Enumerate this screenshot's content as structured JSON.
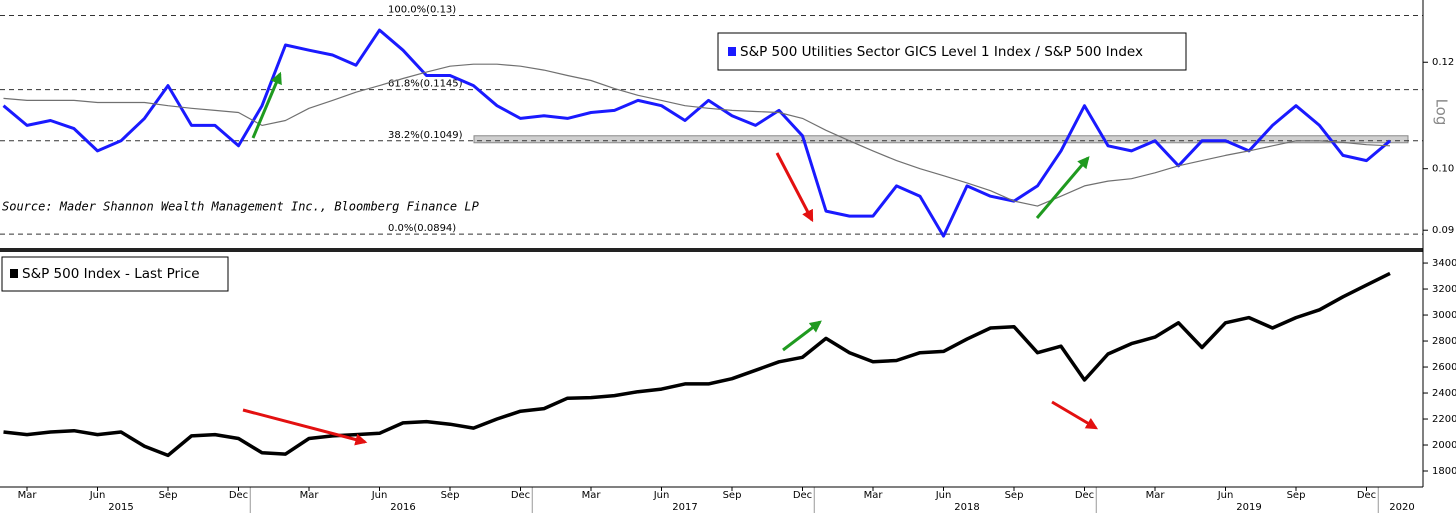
{
  "chart_data": [
    {
      "type": "line",
      "log": true,
      "legend": "S&P 500 Utilities Sector GICS Level 1 Index / S&P 500 Index",
      "source": "Source: Mader Shannon Wealth Management Inc., Bloomberg Finance LP",
      "axis_label": "Log",
      "x": [
        "2015-02",
        "2015-03",
        "2015-04",
        "2015-05",
        "2015-06",
        "2015-07",
        "2015-08",
        "2015-09",
        "2015-10",
        "2015-11",
        "2015-12",
        "2016-01",
        "2016-02",
        "2016-03",
        "2016-04",
        "2016-05",
        "2016-06",
        "2016-07",
        "2016-08",
        "2016-09",
        "2016-10",
        "2016-11",
        "2016-12",
        "2017-01",
        "2017-02",
        "2017-03",
        "2017-04",
        "2017-05",
        "2017-06",
        "2017-07",
        "2017-08",
        "2017-09",
        "2017-10",
        "2017-11",
        "2017-12",
        "2018-01",
        "2018-02",
        "2018-03",
        "2018-04",
        "2018-05",
        "2018-06",
        "2018-07",
        "2018-08",
        "2018-09",
        "2018-10",
        "2018-11",
        "2018-12",
        "2019-01",
        "2019-02",
        "2019-03",
        "2019-04",
        "2019-05",
        "2019-06",
        "2019-07",
        "2019-08",
        "2019-09",
        "2019-10",
        "2019-11",
        "2019-12",
        "2020-01"
      ],
      "series": [
        {
          "name": "S&P 500 Utilities Sector GICS Level 1 Index / S&P 500 Index",
          "color": "#1a1aff",
          "values": [
            0.1114,
            0.1077,
            0.1086,
            0.1071,
            0.1031,
            0.1049,
            0.109,
            0.1153,
            0.1077,
            0.1077,
            0.104,
            0.1114,
            0.1236,
            0.1225,
            0.1215,
            0.1194,
            0.1268,
            0.1225,
            0.1173,
            0.1173,
            0.1153,
            0.1114,
            0.109,
            0.1095,
            0.109,
            0.1101,
            0.1105,
            0.1124,
            0.1114,
            0.1086,
            0.1124,
            0.1095,
            0.1077,
            0.1105,
            0.1058,
            0.093,
            0.0922,
            0.0922,
            0.0971,
            0.0954,
            0.0891,
            0.0971,
            0.0954,
            0.0946,
            0.0971,
            0.1031,
            0.1114,
            0.104,
            0.1031,
            0.1049,
            0.1005,
            0.1049,
            0.1049,
            0.1031,
            0.1077,
            0.1114,
            0.1077,
            0.1023,
            0.1014,
            0.1049
          ]
        },
        {
          "color": "#707070",
          "values": [
            0.1128,
            0.1124,
            0.1124,
            0.1124,
            0.112,
            0.112,
            0.112,
            0.1114,
            0.1109,
            0.1105,
            0.1101,
            0.1077,
            0.1086,
            0.1109,
            0.1124,
            0.114,
            0.1153,
            0.1167,
            0.118,
            0.1192,
            0.1196,
            0.1196,
            0.1192,
            0.1184,
            0.1173,
            0.1163,
            0.1147,
            0.1134,
            0.1124,
            0.1114,
            0.1109,
            0.1105,
            0.1103,
            0.1101,
            0.109,
            0.1068,
            0.1049,
            0.1031,
            0.1014,
            0.1,
            0.0988,
            0.0976,
            0.0963,
            0.0946,
            0.0938,
            0.0954,
            0.0971,
            0.0979,
            0.0983,
            0.0993,
            0.1005,
            0.1014,
            0.1023,
            0.1031,
            0.104,
            0.1049,
            0.1049,
            0.1046,
            0.1042,
            0.104
          ]
        }
      ],
      "levels": [
        {
          "value": 0.13,
          "label": "100.0%(0.13)"
        },
        {
          "value": 0.1145,
          "label": "61.8%(0.1145)"
        },
        {
          "value": 0.1049,
          "label": "38.2%(0.1049)"
        },
        {
          "value": 0.0894,
          "label": "0.0%(0.0894)"
        }
      ],
      "ylim": [
        0.0873,
        0.1335
      ],
      "yticks": [
        {
          "value": 0.09,
          "label": "0.09"
        },
        {
          "value": 0.1,
          "label": "0.10"
        },
        0.12
      ]
    },
    {
      "type": "line",
      "legend": "S&P 500 Index - Last Price",
      "x": [
        "2015-02",
        "2015-03",
        "2015-04",
        "2015-05",
        "2015-06",
        "2015-07",
        "2015-08",
        "2015-09",
        "2015-10",
        "2015-11",
        "2015-12",
        "2016-01",
        "2016-02",
        "2016-03",
        "2016-04",
        "2016-05",
        "2016-06",
        "2016-07",
        "2016-08",
        "2016-09",
        "2016-10",
        "2016-11",
        "2016-12",
        "2017-01",
        "2017-02",
        "2017-03",
        "2017-04",
        "2017-05",
        "2017-06",
        "2017-07",
        "2017-08",
        "2017-09",
        "2017-10",
        "2017-11",
        "2017-12",
        "2018-01",
        "2018-02",
        "2018-03",
        "2018-04",
        "2018-05",
        "2018-06",
        "2018-07",
        "2018-08",
        "2018-09",
        "2018-10",
        "2018-11",
        "2018-12",
        "2019-01",
        "2019-02",
        "2019-03",
        "2019-04",
        "2019-05",
        "2019-06",
        "2019-07",
        "2019-08",
        "2019-09",
        "2019-10",
        "2019-11",
        "2019-12",
        "2020-01"
      ],
      "series": [
        {
          "name": "S&P 500 Index - Last Price",
          "color": "#000000",
          "values": [
            2100,
            2080,
            2100,
            2110,
            2080,
            2100,
            1990,
            1920,
            2070,
            2080,
            2050,
            1940,
            1930,
            2050,
            2070,
            2080,
            2090,
            2170,
            2180,
            2160,
            2130,
            2200,
            2260,
            2280,
            2360,
            2365,
            2380,
            2410,
            2430,
            2470,
            2470,
            2510,
            2575,
            2640,
            2675,
            2820,
            2710,
            2640,
            2650,
            2710,
            2720,
            2815,
            2900,
            2910,
            2710,
            2760,
            2500,
            2700,
            2780,
            2830,
            2940,
            2750,
            2940,
            2980,
            2900,
            2980,
            3040,
            3140,
            3230,
            3320
          ]
        }
      ],
      "ylim": [
        1677,
        3485
      ],
      "yticks": [
        1800,
        2000,
        2200,
        2400,
        2600,
        2800,
        3000,
        3200,
        3400
      ],
      "xticks": [
        {
          "value": "2015-03",
          "label": "Mar"
        },
        {
          "value": "2015-06",
          "label": "Jun"
        },
        {
          "value": "2015-09",
          "label": "Sep"
        },
        {
          "value": "2015-12",
          "label": "Dec"
        },
        {
          "value": "2016-03",
          "label": "Mar"
        },
        {
          "value": "2016-06",
          "label": "Jun"
        },
        {
          "value": "2016-09",
          "label": "Sep"
        },
        {
          "value": "2016-12",
          "label": "Dec"
        },
        {
          "value": "2017-03",
          "label": "Mar"
        },
        {
          "value": "2017-06",
          "label": "Jun"
        },
        {
          "value": "2017-09",
          "label": "Sep"
        },
        {
          "value": "2017-12",
          "label": "Dec"
        },
        {
          "value": "2018-03",
          "label": "Mar"
        },
        {
          "value": "2018-06",
          "label": "Jun"
        },
        {
          "value": "2018-09",
          "label": "Sep"
        },
        {
          "value": "2018-12",
          "label": "Dec"
        },
        {
          "value": "2019-03",
          "label": "Mar"
        },
        {
          "value": "2019-06",
          "label": "Jun"
        },
        {
          "value": "2019-09",
          "label": "Sep"
        },
        {
          "value": "2019-12",
          "label": "Dec"
        }
      ],
      "years": [
        "2015",
        "2016",
        "2017",
        "2018",
        "2019",
        "2020"
      ]
    }
  ]
}
